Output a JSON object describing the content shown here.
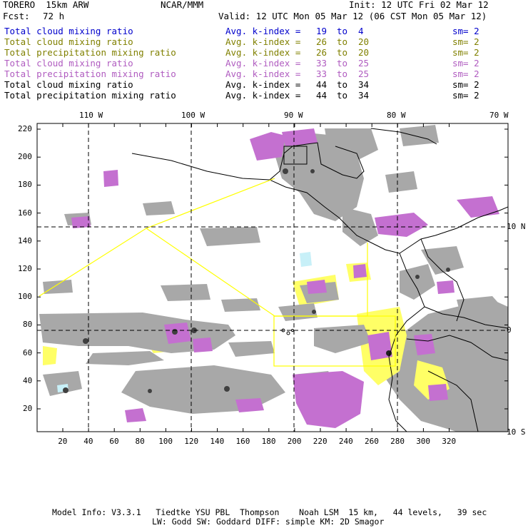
{
  "header": {
    "model": "TORERO  15km ARW",
    "org": "NCAR/MMM",
    "init": "Init: 12 UTC Fri 02 Mar 12",
    "fcst_label": "Fcst:",
    "fcst_value": "72 h",
    "valid": "Valid: 12 UTC Mon 05 Mar 12 (06 CST Mon 05 Mar 12)"
  },
  "legend": [
    {
      "field": "Total cloud mixing ratio",
      "kindex_label": "Avg. k-index =",
      "k1": "19",
      "to": "to",
      "k2": "4",
      "sm": "sm= 2",
      "color": "#0000cc"
    },
    {
      "field": "Total cloud mixing ratio",
      "kindex_label": "Avg. k-index =",
      "k1": "26",
      "to": "to",
      "k2": "20",
      "sm": "sm= 2",
      "color": "#808000"
    },
    {
      "field": "Total precipitation mixing ratio",
      "kindex_label": "Avg. k-index =",
      "k1": "26",
      "to": "to",
      "k2": "20",
      "sm": "sm= 2",
      "color": "#808000"
    },
    {
      "field": "Total cloud mixing ratio",
      "kindex_label": "Avg. k-index =",
      "k1": "33",
      "to": "to",
      "k2": "25",
      "sm": "sm= 2",
      "color": "#b05cc0"
    },
    {
      "field": "Total precipitation mixing ratio",
      "kindex_label": "Avg. k-index =",
      "k1": "33",
      "to": "to",
      "k2": "25",
      "sm": "sm= 2",
      "color": "#b05cc0"
    },
    {
      "field": "Total cloud mixing ratio",
      "kindex_label": "Avg. k-index =",
      "k1": "44",
      "to": "to",
      "k2": "34",
      "sm": "sm= 2",
      "color": "#000000"
    },
    {
      "field": "Total precipitation mixing ratio",
      "kindex_label": "Avg. k-index =",
      "k1": "44",
      "to": "to",
      "k2": "34",
      "sm": "sm= 2",
      "color": "#000000"
    }
  ],
  "axes": {
    "lon_labels": [
      "110 W",
      "100 W",
      "90 W",
      "80 W",
      "70 W"
    ],
    "lat_labels": [
      "10 N",
      "0",
      "10 S"
    ],
    "x_ticks": [
      "20",
      "40",
      "60",
      "80",
      "100",
      "120",
      "140",
      "160",
      "180",
      "200",
      "220",
      "240",
      "260",
      "280",
      "300",
      "320"
    ],
    "y_ticks": [
      "220",
      "200",
      "180",
      "160",
      "140",
      "120",
      "100",
      "80",
      "60",
      "40",
      "20"
    ]
  },
  "footer": {
    "line1": "Model Info: V3.3.1   Tiedtke YSU PBL  Thompson    Noah LSM  15 km,   44 levels,   39 sec",
    "line2": "LW: Godd SW: Goddard DIFF: simple KM: 2D Smagor"
  },
  "colors": {
    "gray_cloud": "#a8a8a8",
    "gray_dark": "#707070",
    "purple": "#c470d0",
    "yellow": "#ffff66",
    "cyan": "#c8f0f8",
    "domain_box": "#ffff00",
    "border": "#000000"
  }
}
